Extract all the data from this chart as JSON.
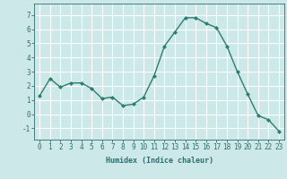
{
  "x": [
    0,
    1,
    2,
    3,
    4,
    5,
    6,
    7,
    8,
    9,
    10,
    11,
    12,
    13,
    14,
    15,
    16,
    17,
    18,
    19,
    20,
    21,
    22,
    23
  ],
  "y": [
    1.3,
    2.5,
    1.9,
    2.2,
    2.2,
    1.8,
    1.1,
    1.2,
    0.6,
    0.7,
    1.2,
    2.7,
    4.8,
    5.8,
    6.8,
    6.8,
    6.4,
    6.1,
    4.8,
    3.0,
    1.4,
    -0.1,
    -0.4,
    -1.2
  ],
  "line_color": "#2e7d6e",
  "marker": "D",
  "marker_size": 2.0,
  "bg_color": "#cce8e8",
  "grid_color": "#ffffff",
  "xlabel": "Humidex (Indice chaleur)",
  "xlim": [
    -0.5,
    23.5
  ],
  "ylim": [
    -1.8,
    7.8
  ],
  "yticks": [
    -1,
    0,
    1,
    2,
    3,
    4,
    5,
    6,
    7
  ],
  "xticks": [
    0,
    1,
    2,
    3,
    4,
    5,
    6,
    7,
    8,
    9,
    10,
    11,
    12,
    13,
    14,
    15,
    16,
    17,
    18,
    19,
    20,
    21,
    22,
    23
  ],
  "label_fontsize": 6.0,
  "tick_fontsize": 5.5,
  "axis_color": "#2e6e6e"
}
